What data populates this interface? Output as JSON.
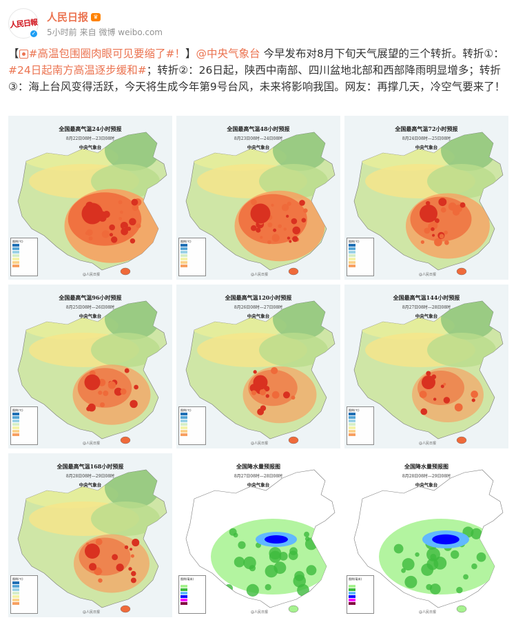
{
  "user": {
    "name": "人民日报",
    "avatar_text": "人民日報",
    "verified_mark": "✓",
    "crown": "♛",
    "time": "5小时前",
    "source": "来自 微博 weibo.com"
  },
  "post": {
    "bracket_open": "【",
    "topic": "#高温包围圈肉眼可见要缩了#！",
    "bracket_close": "】",
    "mention": "@中央气象台",
    "text1": " 今早发布对8月下旬天气展望的三个转折。转折①：",
    "topic2": "#24日起南方高温逐步缓和#",
    "text2": "；转折②：26日起，陕西中南部、四川盆地北部和西部降雨明显增多；转折③：海上台风变得活跃，今天将生成今年第9号台风，未来将影响我国。网友：再撑几天，冷空气要来了！"
  },
  "images": [
    {
      "title": "全国最高气温24小时预报",
      "date": "8月22日08时—23日08时",
      "agency": "中央气象台",
      "type": "temp",
      "heat": 0.95
    },
    {
      "title": "全国最高气温48小时预报",
      "date": "8月23日08时—24日08时",
      "agency": "中央气象台",
      "type": "temp",
      "heat": 0.85
    },
    {
      "title": "全国最高气温72小时预报",
      "date": "8月24日08时—25日08时",
      "agency": "中央气象台",
      "type": "temp",
      "heat": 0.7
    },
    {
      "title": "全国最高气温96小时预报",
      "date": "8月25日08时—26日08时",
      "agency": "中央气象台",
      "type": "temp",
      "heat": 0.55
    },
    {
      "title": "全国最高气温120小时预报",
      "date": "8月26日08时—27日08时",
      "agency": "中央气象台",
      "type": "temp",
      "heat": 0.45
    },
    {
      "title": "全国最高气温144小时预报",
      "date": "8月27日08时—28日08时",
      "agency": "中央气象台",
      "type": "temp",
      "heat": 0.4
    },
    {
      "title": "全国最高气温168小时预报",
      "date": "8月28日08时—29日08时",
      "agency": "中央气象台",
      "type": "temp",
      "heat": 0.5
    },
    {
      "title": "全国降水量预报图",
      "date": "8月27日08时—28日08时",
      "agency": "中央气象台",
      "type": "rain",
      "heat": 0.5
    },
    {
      "title": "全国降水量预报图",
      "date": "8月28日08时—29日08时",
      "agency": "中央气象台",
      "type": "rain",
      "heat": 0.7
    }
  ],
  "legend": {
    "temp_title": "图例(℃)",
    "rain_title": "图例(毫米)"
  },
  "watermark": "@人民日报",
  "colors": {
    "accent": "#eb7350",
    "verified": "#1e9ef4"
  }
}
